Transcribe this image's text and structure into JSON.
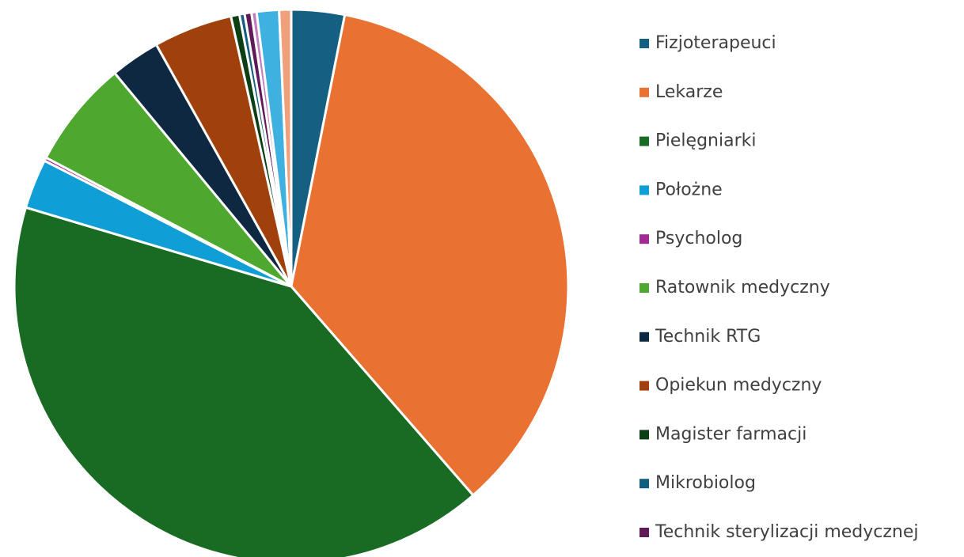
{
  "chart_data": {
    "type": "pie",
    "categories": [
      "Fizjoterapeuci",
      "Lekarze",
      "Pielęgniarki",
      "Położne",
      "Psycholog",
      "Ratownik medyczny",
      "Technik RTG",
      "Opiekun medyczny",
      "Magister farmacji",
      "Mikrobiolog",
      "Technik sterylizacji medycznej",
      null,
      null,
      null
    ],
    "values": [
      3.1,
      35.5,
      41.0,
      2.9,
      0.2,
      6.3,
      2.9,
      4.6,
      0.5,
      0.3,
      0.4,
      0.3,
      1.3,
      0.7
    ],
    "colors": [
      "#156082",
      "#E97132",
      "#196B24",
      "#0F9ED5",
      "#A02B93",
      "#4EA72E",
      "#0E2841",
      "#A0410D",
      "#0D3F15",
      "#135E7F",
      "#5F1A57",
      "#C37FBD",
      "#3FB1E0",
      "#F0A07A"
    ],
    "legend": "right"
  }
}
